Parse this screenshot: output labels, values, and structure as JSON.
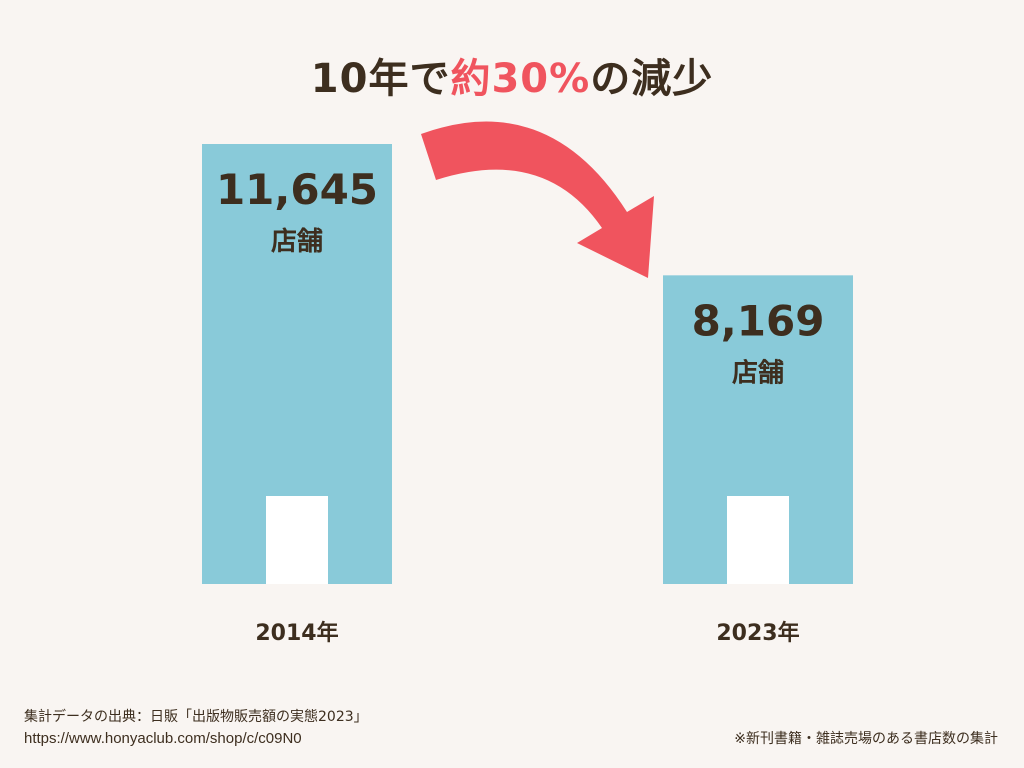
{
  "title": {
    "part1": "10年で",
    "accent": "約30%",
    "part2": "の減少"
  },
  "chart_data": {
    "type": "bar",
    "categories": [
      "2014年",
      "2023年"
    ],
    "values": [
      11645,
      8169
    ],
    "value_labels": [
      "11,645",
      "8,169"
    ],
    "unit_label": "店舗",
    "title": "10年で約30%の減少",
    "xlabel": "",
    "ylabel": "",
    "grid": false,
    "legend": "none"
  },
  "colors": {
    "background": "#f9f5f2",
    "bar": "#89cad9",
    "accent": "#f0545e",
    "text": "#3d2e1f",
    "inner_block": "#ffffff"
  },
  "arrow_icon": "curved-down-arrow-icon",
  "source": {
    "line1": "集計データの出典：日販「出版物販売額の実態2023」",
    "line2": "https://www.honyaclub.com/shop/c/c09N0"
  },
  "note": "※新刊書籍・雑誌売場のある書店数の集計"
}
